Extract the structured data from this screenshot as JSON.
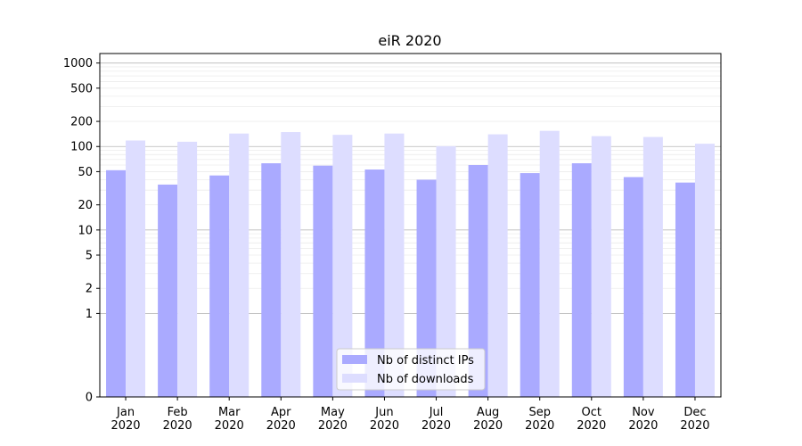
{
  "chart_data": {
    "type": "bar",
    "title": "eiR 2020",
    "xlabel": "",
    "ylabel": "",
    "yscale": "symlog",
    "ylim": [
      0,
      1300
    ],
    "yticks": [
      0,
      1,
      2,
      5,
      10,
      20,
      50,
      100,
      200,
      500,
      1000
    ],
    "ytick_labels": [
      "0",
      "1",
      "2",
      "5",
      "10",
      "20",
      "50",
      "100",
      "200",
      "500",
      "1000"
    ],
    "categories": [
      "Jan\n2020",
      "Feb\n2020",
      "Mar\n2020",
      "Apr\n2020",
      "May\n2020",
      "Jun\n2020",
      "Jul\n2020",
      "Aug\n2020",
      "Sep\n2020",
      "Oct\n2020",
      "Nov\n2020",
      "Dec\n2020"
    ],
    "series": [
      {
        "name": "Nb of distinct IPs",
        "color": "#aaaaff",
        "values": [
          52,
          35,
          45,
          63,
          59,
          53,
          40,
          60,
          48,
          63,
          43,
          37
        ]
      },
      {
        "name": "Nb of downloads",
        "color": "#ddddff",
        "values": [
          118,
          114,
          143,
          149,
          138,
          143,
          101,
          140,
          154,
          133,
          130,
          108
        ]
      }
    ],
    "grid": true,
    "legend_position": "bottom-center"
  }
}
